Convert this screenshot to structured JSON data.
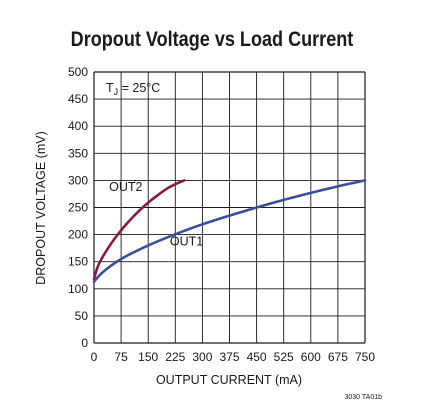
{
  "chart_data": {
    "type": "line",
    "title": "Dropout Voltage vs Load Current",
    "xlabel": "OUTPUT CURRENT (mA)",
    "ylabel": "DROPOUT VOLTAGE (mV)",
    "xlim": [
      0,
      750
    ],
    "ylim": [
      0,
      500
    ],
    "x_ticks": [
      "0",
      "75",
      "150",
      "225",
      "300",
      "375",
      "450",
      "525",
      "600",
      "675",
      "750"
    ],
    "y_ticks": [
      "0",
      "50",
      "100",
      "150",
      "200",
      "250",
      "300",
      "350",
      "400",
      "450",
      "500"
    ],
    "grid": true,
    "condition": {
      "prefix": "T",
      "subscript": "J",
      "suffix": " = 25°C"
    },
    "figure_code": "3030 TA01b",
    "series": [
      {
        "name": "OUT2",
        "color": "#8b1a3a",
        "x": [
          0,
          10,
          25,
          50,
          75,
          100,
          125,
          150,
          175,
          200,
          225,
          250
        ],
        "y": [
          118,
          140,
          160,
          186,
          208,
          227,
          244,
          259,
          272,
          284,
          293,
          300
        ]
      },
      {
        "name": "OUT1",
        "color": "#3a4f9a",
        "x": [
          0,
          20,
          50,
          75,
          100,
          150,
          200,
          250,
          300,
          375,
          450,
          525,
          600,
          675,
          750
        ],
        "y": [
          113,
          128,
          144,
          155,
          164,
          180,
          194,
          207,
          219,
          235,
          250,
          264,
          277,
          289,
          300
        ]
      }
    ],
    "series_label_positions": [
      {
        "series": "OUT2",
        "x": 42,
        "y": 280
      },
      {
        "series": "OUT1",
        "x": 210,
        "y": 180
      }
    ]
  }
}
